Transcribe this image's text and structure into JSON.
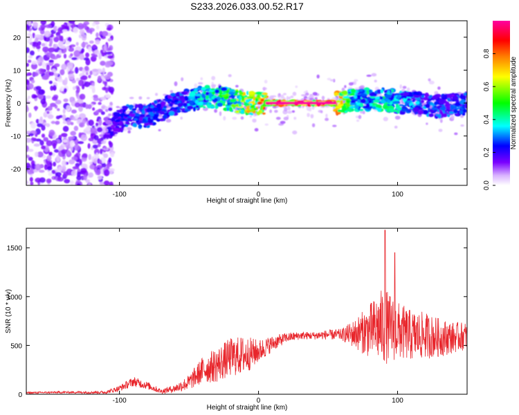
{
  "title": "S233.2026.033.00.52.R17",
  "chart_data": [
    {
      "type": "heatmap",
      "xlabel": "Height of straight line (km)",
      "ylabel": "Frequency (Hz)",
      "xlim": [
        -167,
        150
      ],
      "ylim": [
        -25,
        25
      ],
      "xticks": [
        -100,
        0,
        100
      ],
      "xtick_labels": [
        "-100",
        "0",
        "100"
      ],
      "yticks": [
        -20,
        -10,
        0,
        10,
        20
      ],
      "ytick_labels": [
        "-20",
        "-10",
        "0",
        "10",
        "20"
      ],
      "colorbar": {
        "label": "Normalized spectral amplitude",
        "range": [
          0,
          1
        ],
        "ticks": [
          0.0,
          0.2,
          0.4,
          0.6,
          0.8
        ],
        "tick_labels": [
          "0.0",
          "0.2",
          "0.4",
          "0.6",
          "0.8"
        ],
        "colormap": [
          "#ffffff",
          "#d9b3ff",
          "#7a00ff",
          "#0000ff",
          "#00ffff",
          "#00ff00",
          "#ffff00",
          "#ff8000",
          "#ff0000",
          "#ff00a0"
        ]
      },
      "ridge": [
        {
          "x": -105,
          "freq": -7,
          "amplitude": 0.2
        },
        {
          "x": -95,
          "freq": -4,
          "amplitude": 0.3
        },
        {
          "x": -80,
          "freq": -4,
          "amplitude": 0.3
        },
        {
          "x": -65,
          "freq": -1,
          "amplitude": 0.3
        },
        {
          "x": -50,
          "freq": 1,
          "amplitude": 0.35
        },
        {
          "x": -35,
          "freq": 2,
          "amplitude": 0.45
        },
        {
          "x": -20,
          "freq": 1,
          "amplitude": 0.55
        },
        {
          "x": -10,
          "freq": 0,
          "amplitude": 0.7
        },
        {
          "x": 0,
          "freq": 0,
          "amplitude": 0.8
        },
        {
          "x": 10,
          "freq": 0,
          "amplitude": 0.95
        },
        {
          "x": 30,
          "freq": 0,
          "amplitude": 1.0
        },
        {
          "x": 55,
          "freq": 0,
          "amplitude": 0.9
        },
        {
          "x": 70,
          "freq": 1,
          "amplitude": 0.4
        },
        {
          "x": 90,
          "freq": 1,
          "amplitude": 0.45
        },
        {
          "x": 110,
          "freq": 0,
          "amplitude": 0.35
        },
        {
          "x": 130,
          "freq": -1,
          "amplitude": 0.3
        },
        {
          "x": 150,
          "freq": 0,
          "amplitude": 0.3
        }
      ]
    },
    {
      "type": "line",
      "xlabel": "Height of straight line (km)",
      "ylabel": "SNR (10 * v/v)",
      "xlim": [
        -167,
        150
      ],
      "ylim": [
        0,
        1700
      ],
      "xticks": [
        -100,
        0,
        100
      ],
      "xtick_labels": [
        "-100",
        "0",
        "100"
      ],
      "yticks": [
        0,
        500,
        1000,
        1500
      ],
      "ytick_labels": [
        "0",
        "500",
        "1000",
        "1500"
      ],
      "series": [
        {
          "name": "SNR",
          "color": "#e8252b",
          "x": [
            -167,
            -140,
            -110,
            -100,
            -90,
            -80,
            -70,
            -60,
            -50,
            -40,
            -30,
            -20,
            -10,
            0,
            10,
            20,
            30,
            40,
            50,
            60,
            70,
            80,
            90,
            100,
            110,
            120,
            130,
            140,
            150
          ],
          "y": [
            15,
            20,
            20,
            60,
            130,
            90,
            30,
            60,
            120,
            250,
            300,
            380,
            400,
            440,
            520,
            580,
            600,
            600,
            610,
            610,
            620,
            650,
            700,
            650,
            600,
            600,
            580,
            580,
            600
          ],
          "spread": [
            10,
            10,
            15,
            30,
            50,
            40,
            25,
            40,
            80,
            140,
            180,
            200,
            200,
            120,
            80,
            50,
            40,
            40,
            50,
            60,
            160,
            280,
            400,
            300,
            260,
            240,
            200,
            160,
            140
          ],
          "peaks": [
            {
              "x": 91,
              "y": 1680
            },
            {
              "x": 98,
              "y": 1450
            }
          ]
        }
      ]
    }
  ]
}
